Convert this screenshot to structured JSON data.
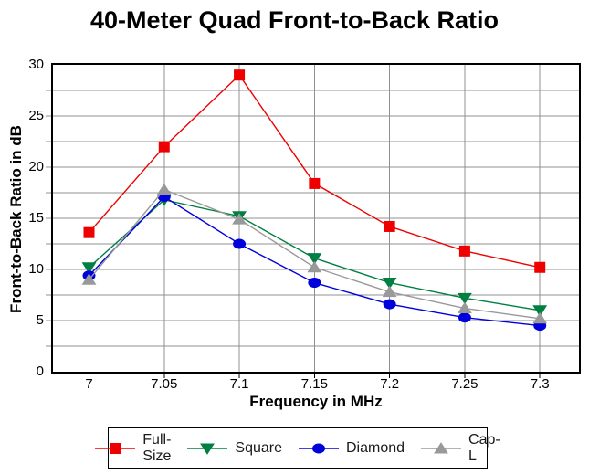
{
  "figure": {
    "title": "40-Meter Quad Front-to-Back Ratio"
  },
  "chart_data": {
    "type": "line",
    "title": "40-Meter Quad Front-to-Back Ratio",
    "xlabel": "Frequency in MHz",
    "ylabel": "Front-to-Back Ratio in dB",
    "x": [
      7,
      7.05,
      7.1,
      7.15,
      7.2,
      7.25,
      7.3
    ],
    "x_tick_labels": [
      "7",
      "7.05",
      "7.1",
      "7.15",
      "7.2",
      "7.25",
      "7.3"
    ],
    "y_tick_labels": [
      0,
      5,
      10,
      15,
      20,
      25,
      30
    ],
    "y_minor_step": 2.5,
    "xlim": [
      6.976,
      7.326
    ],
    "ylim": [
      0,
      30
    ],
    "grid": true,
    "grid_color": "#909090",
    "legend_position": "bottom",
    "series": [
      {
        "name": "Full-Size",
        "marker": "square",
        "color": "#ee0000",
        "values": [
          13.6,
          22.0,
          29.0,
          18.4,
          14.2,
          11.8,
          10.2
        ]
      },
      {
        "name": "Square",
        "marker": "triangle-down",
        "color": "#008040",
        "values": [
          10.2,
          16.8,
          15.2,
          11.1,
          8.7,
          7.2,
          6.0
        ]
      },
      {
        "name": "Diamond",
        "marker": "circle",
        "color": "#0000dd",
        "values": [
          9.4,
          17.1,
          12.5,
          8.7,
          6.6,
          5.3,
          4.5
        ]
      },
      {
        "name": "Cap-L",
        "marker": "triangle-up",
        "color": "#999999",
        "values": [
          9.0,
          17.8,
          14.9,
          10.2,
          7.8,
          6.2,
          5.2
        ]
      }
    ]
  }
}
